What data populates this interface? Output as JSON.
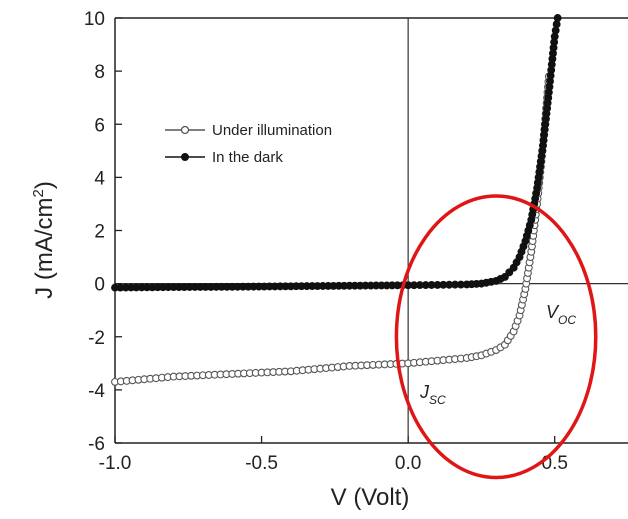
{
  "chart_data": {
    "type": "line",
    "xlabel": "V (Volt)",
    "ylabel": "J (mA/cm",
    "ylabel_sup": "2",
    "ylabel_close": ")",
    "xlim": [
      -1.0,
      0.75
    ],
    "ylim": [
      -6,
      10
    ],
    "x_ticks": [
      -1.0,
      -0.5,
      0.0,
      0.5
    ],
    "x_tick_labels": [
      "-1.0",
      "-0.5",
      "0.0",
      "0.5"
    ],
    "y_ticks": [
      -6,
      -4,
      -2,
      0,
      2,
      4,
      6,
      8,
      10
    ],
    "y_tick_labels": [
      "-6",
      "-4",
      "-2",
      "0",
      "2",
      "4",
      "6",
      "8",
      "10"
    ],
    "grid": false,
    "legend_position": "upper-left",
    "series": [
      {
        "name": "Under illumination",
        "marker": "open-circle",
        "color": "#555555",
        "x": [
          -1.0,
          -0.9,
          -0.8,
          -0.7,
          -0.6,
          -0.5,
          -0.4,
          -0.3,
          -0.2,
          -0.1,
          0.0,
          0.1,
          0.2,
          0.25,
          0.3,
          0.33,
          0.36,
          0.38,
          0.4,
          0.42,
          0.44,
          0.46,
          0.48
        ],
        "y": [
          -3.7,
          -3.6,
          -3.5,
          -3.45,
          -3.4,
          -3.35,
          -3.3,
          -3.2,
          -3.1,
          -3.05,
          -3.0,
          -2.9,
          -2.8,
          -2.7,
          -2.5,
          -2.3,
          -1.8,
          -1.2,
          -0.2,
          1.2,
          3.0,
          5.2,
          7.8
        ]
      },
      {
        "name": "In the dark",
        "marker": "filled-circle",
        "color": "#111111",
        "x": [
          -1.0,
          -0.8,
          -0.6,
          -0.4,
          -0.2,
          0.0,
          0.1,
          0.2,
          0.25,
          0.3,
          0.33,
          0.36,
          0.38,
          0.4,
          0.42,
          0.44,
          0.46,
          0.48,
          0.5,
          0.51
        ],
        "y": [
          -0.15,
          -0.13,
          -0.12,
          -0.1,
          -0.08,
          -0.06,
          -0.05,
          -0.03,
          0.0,
          0.1,
          0.25,
          0.6,
          1.0,
          1.6,
          2.4,
          3.6,
          5.2,
          7.2,
          9.3,
          10.0
        ]
      }
    ],
    "annotations": [
      {
        "text": "V",
        "sub": "OC",
        "x": 0.5,
        "y": -1.0
      },
      {
        "text": "J",
        "sub": "SC",
        "x": 0.05,
        "y": -4.0
      }
    ],
    "highlight": {
      "shape": "ellipse",
      "color": "#e01515",
      "cx": 0.3,
      "cy": -2.0,
      "rx": 0.34,
      "ry": 5.3
    }
  }
}
